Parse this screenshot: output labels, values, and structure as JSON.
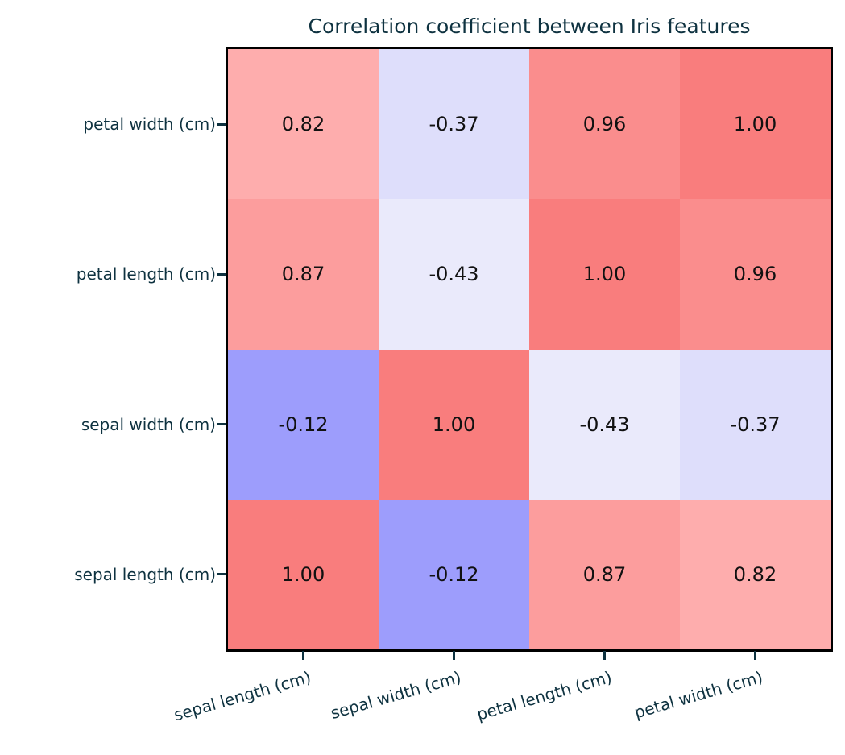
{
  "chart_data": {
    "type": "heatmap",
    "title": "Correlation coefficient between Iris features",
    "x_categories": [
      "sepal length (cm)",
      "sepal width (cm)",
      "petal length (cm)",
      "petal width (cm)"
    ],
    "y_categories": [
      "petal width (cm)",
      "petal length (cm)",
      "sepal width (cm)",
      "sepal length (cm)"
    ],
    "values": [
      [
        0.82,
        -0.37,
        0.96,
        1.0
      ],
      [
        0.87,
        -0.43,
        1.0,
        0.96
      ],
      [
        -0.12,
        1.0,
        -0.43,
        -0.37
      ],
      [
        1.0,
        -0.12,
        0.87,
        0.82
      ]
    ],
    "values_text": [
      [
        "0.82",
        "-0.37",
        "0.96",
        "1.00"
      ],
      [
        "0.87",
        "-0.43",
        "1.00",
        "0.96"
      ],
      [
        "-0.12",
        "1.00",
        "-0.43",
        "-0.37"
      ],
      [
        "1.00",
        "-0.12",
        "0.87",
        "0.82"
      ]
    ],
    "cell_colors": [
      [
        "#feadad",
        "#dedefb",
        "#fa8d8d",
        "#f97d7d"
      ],
      [
        "#fc9d9d",
        "#eaeafb",
        "#f97d7d",
        "#fa8d8d"
      ],
      [
        "#9d9dfc",
        "#f97d7d",
        "#eaeafb",
        "#dedefb"
      ],
      [
        "#f97d7d",
        "#9d9dfc",
        "#fc9d9d",
        "#feadad"
      ]
    ],
    "colors": {
      "title_text": "#0e3240",
      "tick_label_text": "#0e3240",
      "tick_mark": "#0e3240",
      "cell_value_text": "#111111",
      "spine": "#000000",
      "background": "#ffffff"
    },
    "layout_hints": {
      "x_tick_rotation_deg": 16,
      "grid": false,
      "legend": "none",
      "colorbar": "none"
    }
  }
}
